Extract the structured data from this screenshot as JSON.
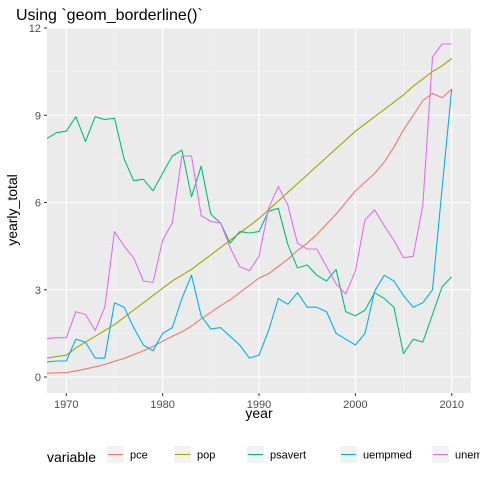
{
  "chart_data": {
    "type": "line",
    "title": "Using `geom_borderline()`",
    "xlabel": "year",
    "ylabel": "yearly_total",
    "xlim": [
      1968,
      2012
    ],
    "ylim": [
      -0.55,
      12.0
    ],
    "x_ticks": [
      1970,
      1980,
      1990,
      2000,
      2010
    ],
    "y_ticks": [
      0,
      3,
      6,
      9,
      12
    ],
    "grid": true,
    "legend_position": "bottom",
    "legend_title": "variable",
    "x": [
      1967,
      1968,
      1969,
      1970,
      1971,
      1972,
      1973,
      1974,
      1975,
      1976,
      1977,
      1978,
      1979,
      1980,
      1981,
      1982,
      1983,
      1984,
      1985,
      1986,
      1987,
      1988,
      1989,
      1990,
      1991,
      1992,
      1993,
      1994,
      1995,
      1996,
      1997,
      1998,
      1999,
      2000,
      2001,
      2002,
      2003,
      2004,
      2005,
      2006,
      2007,
      2008,
      2009,
      2010
    ],
    "series": [
      {
        "name": "pce",
        "color": "#F8766D",
        "values": [
          0.12,
          0.13,
          0.14,
          0.15,
          0.21,
          0.28,
          0.35,
          0.43,
          0.54,
          0.64,
          0.77,
          0.9,
          1.05,
          1.23,
          1.4,
          1.55,
          1.75,
          2.0,
          2.22,
          2.45,
          2.65,
          2.9,
          3.15,
          3.4,
          3.55,
          3.8,
          4.05,
          4.35,
          4.6,
          4.9,
          5.25,
          5.6,
          6.0,
          6.4,
          6.7,
          7.0,
          7.4,
          7.9,
          8.5,
          9.0,
          9.5,
          9.75,
          9.6,
          9.9
        ]
      },
      {
        "name": "pop",
        "color": "#A3A500",
        "values": [
          0.6,
          0.65,
          0.7,
          0.75,
          1.0,
          1.2,
          1.4,
          1.6,
          1.8,
          2.05,
          2.3,
          2.55,
          2.8,
          3.05,
          3.3,
          3.5,
          3.7,
          3.95,
          4.2,
          4.45,
          4.7,
          4.95,
          5.2,
          5.45,
          5.75,
          6.05,
          6.35,
          6.65,
          6.95,
          7.25,
          7.55,
          7.85,
          8.15,
          8.45,
          8.7,
          8.95,
          9.2,
          9.45,
          9.7,
          10.0,
          10.25,
          10.5,
          10.7,
          10.95
        ]
      },
      {
        "name": "psavert",
        "color": "#00BF7D",
        "values": [
          8.0,
          8.2,
          8.4,
          8.45,
          8.95,
          8.1,
          8.95,
          8.85,
          8.9,
          7.5,
          6.75,
          6.8,
          6.4,
          7.0,
          7.6,
          7.8,
          6.2,
          7.25,
          5.6,
          5.3,
          4.6,
          5.0,
          4.95,
          5.0,
          5.7,
          5.8,
          4.55,
          3.75,
          3.85,
          3.5,
          3.3,
          3.7,
          2.25,
          2.1,
          2.3,
          2.9,
          2.7,
          2.4,
          0.8,
          1.3,
          1.2,
          2.15,
          3.1,
          3.45
        ]
      },
      {
        "name": "uempmed",
        "color": "#00B0F6",
        "values": [
          0.5,
          0.52,
          0.55,
          0.55,
          1.3,
          1.2,
          0.65,
          0.65,
          2.55,
          2.4,
          1.7,
          1.1,
          0.9,
          1.5,
          1.7,
          2.7,
          3.5,
          2.1,
          1.65,
          1.7,
          1.4,
          1.1,
          0.65,
          0.75,
          1.6,
          2.7,
          2.5,
          2.9,
          2.4,
          2.4,
          2.25,
          1.5,
          1.3,
          1.1,
          1.5,
          2.95,
          3.5,
          3.3,
          2.8,
          2.4,
          2.55,
          3.0,
          6.5,
          9.9
        ]
      },
      {
        "name": "unemploy",
        "color": "#E76BF3",
        "values": [
          1.3,
          1.32,
          1.35,
          1.35,
          2.25,
          2.15,
          1.6,
          2.4,
          5.0,
          4.5,
          4.1,
          3.3,
          3.25,
          4.7,
          5.3,
          7.6,
          7.6,
          5.55,
          5.35,
          5.3,
          4.45,
          3.8,
          3.65,
          4.15,
          5.8,
          6.55,
          5.9,
          4.6,
          4.4,
          4.4,
          3.8,
          3.2,
          2.85,
          3.65,
          5.4,
          5.75,
          5.2,
          4.7,
          4.1,
          4.15,
          5.9,
          11.0,
          11.45,
          11.45
        ]
      }
    ]
  }
}
